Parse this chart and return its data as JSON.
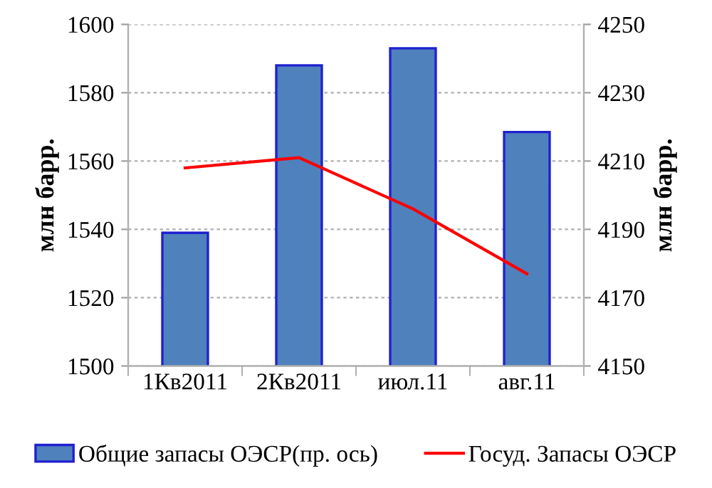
{
  "chart_data": {
    "type": "bar",
    "categories": [
      "1Кв2011",
      "2Кв2011",
      "июл.11",
      "авг.11"
    ],
    "ylabel": "млн барр.",
    "y2label": "млн барр.",
    "ylim": [
      1500,
      1600
    ],
    "yticks": [
      1500,
      1520,
      1540,
      1560,
      1580,
      1600
    ],
    "y2lim": [
      4150,
      4250
    ],
    "y2ticks": [
      4150,
      4170,
      4190,
      4210,
      4230,
      4250
    ],
    "grid": "y",
    "legend": "bottom",
    "series": [
      {
        "name": "Общие запасы ОЭСР(пр. ось)",
        "axis": "y2",
        "color": "#4f81bd",
        "values": [
          4189,
          4238,
          4243,
          4218.5
        ]
      },
      {
        "name": "Госуд. Запасы ОЭСР",
        "type": "line",
        "axis": "y",
        "color": "#ff0000",
        "values": [
          1558,
          1561,
          1546,
          1527
        ]
      }
    ]
  }
}
